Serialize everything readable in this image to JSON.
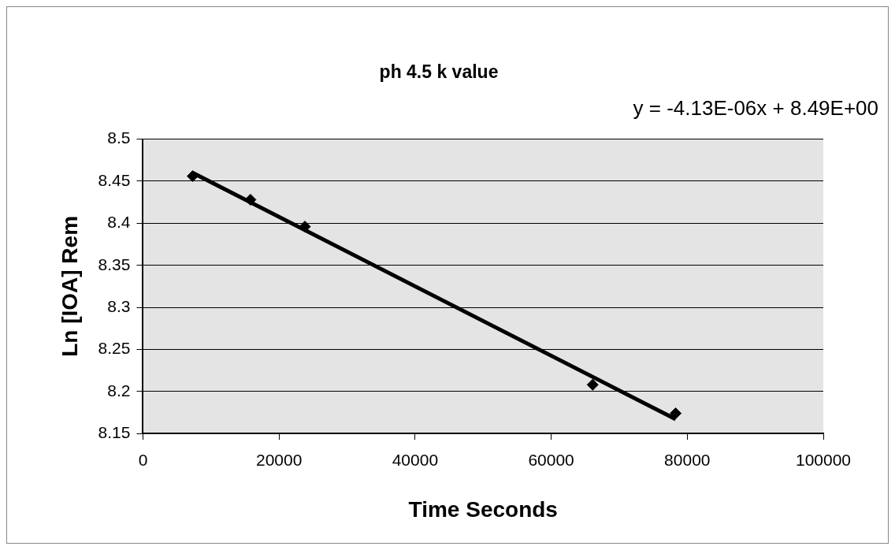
{
  "chart_data": {
    "type": "scatter",
    "title": "ph 4.5 k value",
    "xlabel": "Time Seconds",
    "ylabel": "Ln [IOA] Rem",
    "annotations": [
      "y = -4.13E-06x + 8.49E+00"
    ],
    "xlim": [
      0,
      100000
    ],
    "xticks": [
      0,
      20000,
      40000,
      60000,
      80000,
      100000
    ],
    "ylim": [
      8.15,
      8.5
    ],
    "yticks": [
      8.15,
      8.2,
      8.25,
      8.3,
      8.35,
      8.4,
      8.45,
      8.5
    ],
    "grid": "y",
    "legend": false,
    "series": [
      {
        "color": "#000000",
        "marker": "diamond",
        "x": [
          7300,
          15800,
          23800,
          66100,
          78300
        ],
        "values": [
          8.456,
          8.428,
          8.396,
          8.208,
          8.174
        ]
      },
      {
        "type": "line",
        "color": "#000000",
        "marker": "none",
        "line_style": "solid",
        "x": [
          7300,
          78300
        ],
        "values": [
          8.46,
          8.167
        ]
      }
    ]
  }
}
